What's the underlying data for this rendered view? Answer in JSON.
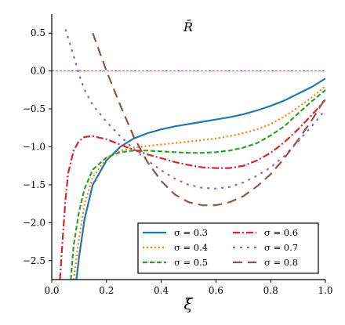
{
  "chart_data": {
    "type": "line",
    "title": "R̄",
    "xlabel": "ξ̄",
    "ylabel": "",
    "xlim": [
      0.0,
      1.0
    ],
    "ylim": [
      -2.75,
      0.75
    ],
    "xticks": [
      0.0,
      0.2,
      0.4,
      0.6,
      0.8,
      1.0
    ],
    "xtick_labels": [
      "0.0",
      "0.2",
      "0.4",
      "0.6",
      "0.8",
      "1.0"
    ],
    "yticks": [
      0.5,
      0.0,
      -0.5,
      -1.0,
      -1.5,
      -2.0,
      -2.5
    ],
    "ytick_labels": [
      "0.5",
      "0.0",
      "−0.5",
      "−1.0",
      "−1.5",
      "−2.0",
      "−2.5"
    ],
    "reference_line": {
      "y": 0.0,
      "color": "#9a2fb0",
      "style": "dashed"
    },
    "legend": {
      "placement": "lower-right",
      "columns": 2
    },
    "grid": false,
    "series": [
      {
        "name": "σ = 0.3",
        "color": "#1f77b4",
        "dash": "solid",
        "x": [
          0.09,
          0.1,
          0.12,
          0.15,
          0.2,
          0.25,
          0.3,
          0.35,
          0.4,
          0.45,
          0.5,
          0.55,
          0.6,
          0.65,
          0.7,
          0.75,
          0.8,
          0.85,
          0.9,
          0.95,
          1.0
        ],
        "y": [
          -2.75,
          -2.45,
          -1.95,
          -1.5,
          -1.18,
          -1.0,
          -0.89,
          -0.82,
          -0.77,
          -0.73,
          -0.7,
          -0.67,
          -0.64,
          -0.61,
          -0.57,
          -0.52,
          -0.46,
          -0.39,
          -0.3,
          -0.21,
          -0.1
        ]
      },
      {
        "name": "σ = 0.4",
        "color": "#ff7f0e",
        "dash": "dotted",
        "x": [
          0.08,
          0.1,
          0.12,
          0.15,
          0.2,
          0.25,
          0.3,
          0.35,
          0.4,
          0.45,
          0.5,
          0.55,
          0.6,
          0.65,
          0.7,
          0.75,
          0.8,
          0.85,
          0.9,
          0.95,
          1.0
        ],
        "y": [
          -2.75,
          -2.2,
          -1.75,
          -1.4,
          -1.15,
          -1.05,
          -1.01,
          -0.99,
          -0.97,
          -0.95,
          -0.93,
          -0.91,
          -0.89,
          -0.86,
          -0.82,
          -0.77,
          -0.7,
          -0.6,
          -0.48,
          -0.35,
          -0.2
        ]
      },
      {
        "name": "σ = 0.5",
        "color": "#2ca02c",
        "dash": "dashed",
        "x": [
          0.07,
          0.08,
          0.1,
          0.12,
          0.15,
          0.2,
          0.25,
          0.3,
          0.35,
          0.4,
          0.45,
          0.5,
          0.55,
          0.6,
          0.65,
          0.7,
          0.75,
          0.8,
          0.85,
          0.9,
          0.95,
          1.0
        ],
        "y": [
          -2.75,
          -2.3,
          -1.85,
          -1.55,
          -1.3,
          -1.14,
          -1.07,
          -1.05,
          -1.05,
          -1.06,
          -1.07,
          -1.08,
          -1.08,
          -1.07,
          -1.05,
          -1.01,
          -0.95,
          -0.85,
          -0.73,
          -0.56,
          -0.4,
          -0.25
        ]
      },
      {
        "name": "σ = 0.6",
        "color": "#d62728",
        "dash": "dashdot",
        "x": [
          0.03,
          0.04,
          0.05,
          0.06,
          0.08,
          0.1,
          0.12,
          0.15,
          0.2,
          0.25,
          0.3,
          0.35,
          0.4,
          0.45,
          0.5,
          0.55,
          0.6,
          0.65,
          0.7,
          0.75,
          0.8,
          0.85,
          0.9,
          0.95,
          1.0
        ],
        "y": [
          -2.75,
          -2.2,
          -1.7,
          -1.35,
          -1.05,
          -0.92,
          -0.87,
          -0.86,
          -0.9,
          -0.97,
          -1.04,
          -1.1,
          -1.15,
          -1.2,
          -1.24,
          -1.27,
          -1.28,
          -1.28,
          -1.25,
          -1.18,
          -1.08,
          -0.94,
          -0.77,
          -0.58,
          -0.38
        ]
      },
      {
        "name": "σ = 0.7",
        "color": "#9467bd",
        "dash": "dotted-long",
        "x": [
          0.05,
          0.08,
          0.1,
          0.12,
          0.15,
          0.2,
          0.25,
          0.3,
          0.35,
          0.4,
          0.45,
          0.5,
          0.55,
          0.6,
          0.65,
          0.7,
          0.75,
          0.8,
          0.85,
          0.9,
          0.95,
          1.0
        ],
        "y": [
          0.55,
          0.2,
          -0.05,
          -0.25,
          -0.45,
          -0.67,
          -0.86,
          -1.03,
          -1.18,
          -1.31,
          -1.42,
          -1.5,
          -1.54,
          -1.55,
          -1.53,
          -1.47,
          -1.38,
          -1.27,
          -1.12,
          -0.93,
          -0.73,
          -0.51
        ]
      },
      {
        "name": "σ = 0.8",
        "color": "#8c564b",
        "dash": "longdash",
        "x": [
          0.15,
          0.2,
          0.25,
          0.3,
          0.35,
          0.4,
          0.45,
          0.5,
          0.55,
          0.6,
          0.65,
          0.7,
          0.75,
          0.8,
          0.85,
          0.9,
          0.95,
          1.0
        ],
        "y": [
          0.5,
          0.0,
          -0.45,
          -0.87,
          -1.2,
          -1.45,
          -1.63,
          -1.73,
          -1.77,
          -1.77,
          -1.73,
          -1.65,
          -1.52,
          -1.36,
          -1.15,
          -0.91,
          -0.65,
          -0.36
        ]
      }
    ]
  }
}
